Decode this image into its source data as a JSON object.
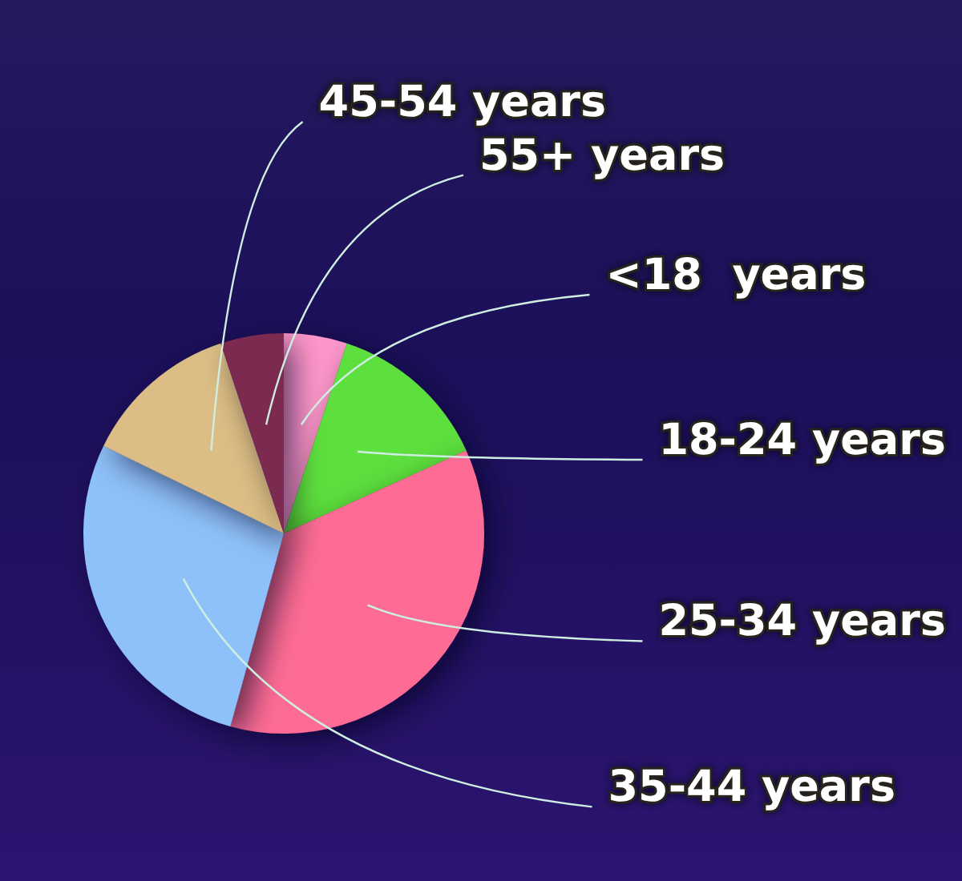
{
  "chart_data": {
    "type": "pie",
    "categories": [
      "<18  years",
      "18-24 years",
      "25-34 years",
      "35-44 years",
      "45-54 years",
      "55+ years"
    ],
    "values": [
      5.1,
      13.1,
      36.1,
      27.9,
      12.7,
      5.1
    ],
    "colors": [
      "#ff97cc",
      "#5ddf3e",
      "#fe6c96",
      "#8ec0fa",
      "#dbbd85",
      "#7c2a4f"
    ]
  }
}
